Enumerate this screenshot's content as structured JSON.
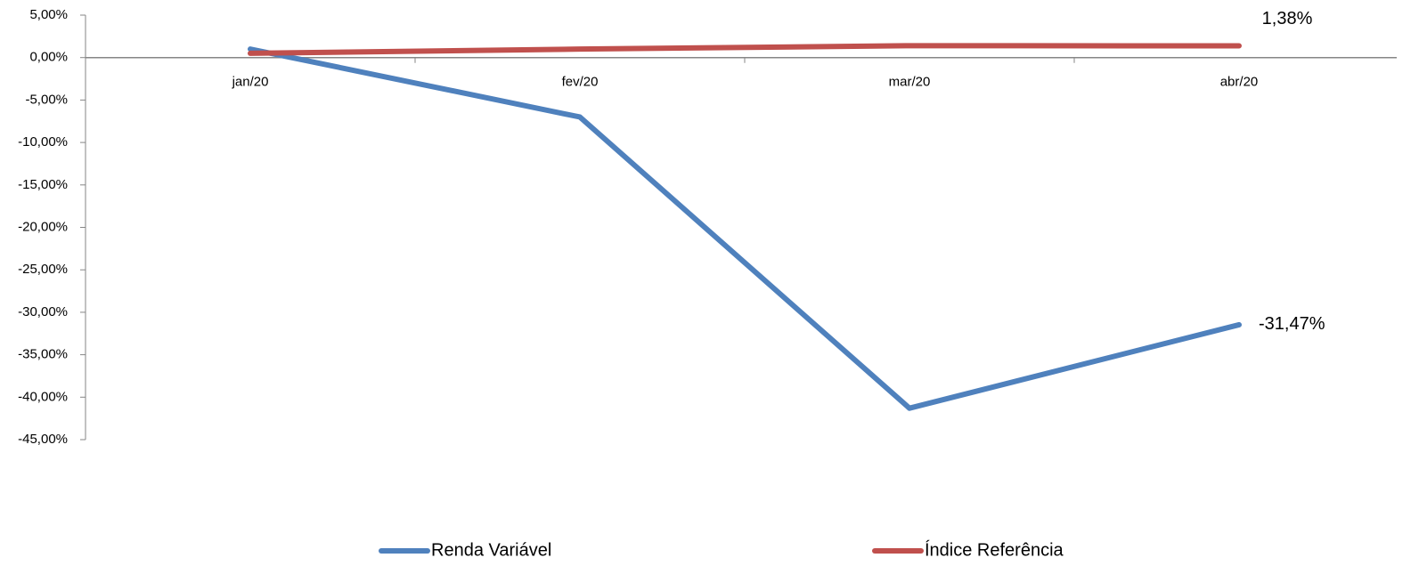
{
  "chart_data": {
    "type": "line",
    "categories": [
      "jan/20",
      "fev/20",
      "mar/20",
      "abr/20"
    ],
    "series": [
      {
        "name": "Renda Variável",
        "color": "#4f81bd",
        "values": [
          1.0,
          -7.0,
          -41.3,
          -31.47
        ],
        "value_labels": [
          null,
          null,
          null,
          "-31,47%"
        ]
      },
      {
        "name": "Índice Referência",
        "color": "#c0504d",
        "values": [
          0.5,
          1.0,
          1.4,
          1.38
        ],
        "value_labels": [
          null,
          null,
          null,
          "1,38%"
        ]
      }
    ],
    "ylim": [
      -45,
      5
    ],
    "yticks": [
      {
        "value": 5,
        "label": "5,00%"
      },
      {
        "value": 0,
        "label": "0,00%"
      },
      {
        "value": -5,
        "label": "-5,00%"
      },
      {
        "value": -10,
        "label": "-10,00%"
      },
      {
        "value": -15,
        "label": "-15,00%"
      },
      {
        "value": -20,
        "label": "-20,00%"
      },
      {
        "value": -25,
        "label": "-25,00%"
      },
      {
        "value": -30,
        "label": "-30,00%"
      },
      {
        "value": -35,
        "label": "-35,00%"
      },
      {
        "value": -40,
        "label": "-40,00%"
      },
      {
        "value": -45,
        "label": "-45,00%"
      }
    ],
    "grid": false,
    "legend": "bottom"
  }
}
